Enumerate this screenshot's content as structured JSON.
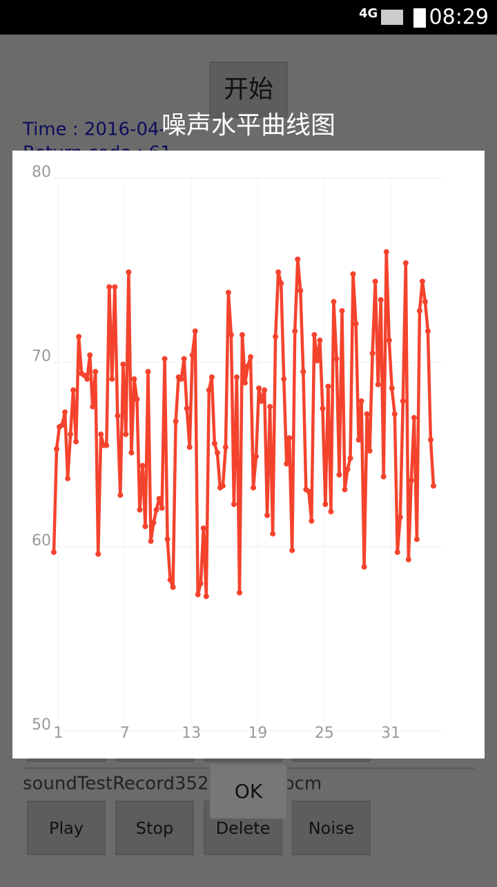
{
  "status_bar": {
    "network": "4G",
    "time": "08:29"
  },
  "background": {
    "start_button": "开始",
    "time_text": "Time : 2016-04-",
    "return_code": "Return code : 61",
    "file_name": "soundTestRecord352892810.pcm",
    "buttons": [
      "Play",
      "Stop",
      "Delete",
      "Noise"
    ]
  },
  "dialog": {
    "title": "噪声水平曲线图",
    "ok_button": "OK"
  },
  "chart_data": {
    "type": "line",
    "color": "#f4432d",
    "grid": true,
    "xlim": [
      0.6,
      35.6
    ],
    "xticks": [
      1,
      7,
      13,
      19,
      25,
      31
    ],
    "ylim": [
      50,
      80
    ],
    "yticks": [
      50,
      60,
      70,
      80
    ],
    "x": [
      0.6,
      0.85,
      1.1,
      1.35,
      1.6,
      1.85,
      2.1,
      2.35,
      2.6,
      2.85,
      3.1,
      3.35,
      3.6,
      3.85,
      4.1,
      4.35,
      4.6,
      4.85,
      5.1,
      5.35,
      5.6,
      5.85,
      6.1,
      6.35,
      6.6,
      6.85,
      7.1,
      7.35,
      7.6,
      7.85,
      8.1,
      8.35,
      8.6,
      8.85,
      9.1,
      9.35,
      9.6,
      9.85,
      10.1,
      10.35,
      10.6,
      10.85,
      11.1,
      11.35,
      11.6,
      11.85,
      12.1,
      12.35,
      12.6,
      12.85,
      13.1,
      13.35,
      13.6,
      13.85,
      14.1,
      14.35,
      14.6,
      14.85,
      15.1,
      15.35,
      15.6,
      15.85,
      16.1,
      16.35,
      16.6,
      16.85,
      17.1,
      17.35,
      17.6,
      17.85,
      18.1,
      18.35,
      18.6,
      18.85,
      19.1,
      19.35,
      19.6,
      19.85,
      20.1,
      20.35,
      20.6,
      20.85,
      21.1,
      21.35,
      21.6,
      21.85,
      22.1,
      22.35,
      22.6,
      22.85,
      23.1,
      23.35,
      23.6,
      23.85,
      24.1,
      24.35,
      24.6,
      24.85,
      25.1,
      25.35,
      25.6,
      25.85,
      26.1,
      26.35,
      26.6,
      26.85,
      27.1,
      27.35,
      27.6,
      27.85,
      28.1,
      28.35,
      28.6,
      28.85,
      29.1,
      29.35,
      29.6,
      29.85,
      30.1,
      30.35,
      30.6,
      30.85,
      31.1,
      31.35,
      31.6,
      31.85,
      32.1,
      32.35,
      32.6,
      32.85,
      33.1,
      33.35,
      33.6,
      33.85,
      34.1,
      34.35,
      34.6,
      34.85
    ],
    "values": [
      59.7,
      65.3,
      66.5,
      66.6,
      67.3,
      63.7,
      66.1,
      68.5,
      65.7,
      71.4,
      69.4,
      69.3,
      69.1,
      70.4,
      67.6,
      69.5,
      59.6,
      66.1,
      65.5,
      65.5,
      74.1,
      69.1,
      74.1,
      67.1,
      62.8,
      69.9,
      66.1,
      74.9,
      65.1,
      69.1,
      68.0,
      62.0,
      64.4,
      61.1,
      69.5,
      60.3,
      61.3,
      62.0,
      62.6,
      62.1,
      70.2,
      60.4,
      58.2,
      57.8,
      66.8,
      69.2,
      69.1,
      70.2,
      67.5,
      65.4,
      70.4,
      71.7,
      57.4,
      58.0,
      61.0,
      57.3,
      68.5,
      69.2,
      65.6,
      65.1,
      63.2,
      63.3,
      65.4,
      73.8,
      71.5,
      62.3,
      69.2,
      57.5,
      71.5,
      68.9,
      69.8,
      70.3,
      63.2,
      64.9,
      68.6,
      67.9,
      68.5,
      61.7,
      67.6,
      60.7,
      71.4,
      74.9,
      74.3,
      69.1,
      64.5,
      65.9,
      59.8,
      71.7,
      75.6,
      73.9,
      69.5,
      63.1,
      63.0,
      61.4,
      71.5,
      70.1,
      71.2,
      67.5,
      62.3,
      68.7,
      61.9,
      73.3,
      70.2,
      63.9,
      72.8,
      63.1,
      64.2,
      64.8,
      74.8,
      72.1,
      65.8,
      67.9,
      58.9,
      67.2,
      65.2,
      70.5,
      74.4,
      68.8,
      73.4,
      63.8,
      76.0,
      71.2,
      68.6,
      67.2,
      59.7,
      61.6,
      67.9,
      75.4,
      59.3,
      63.6,
      67.0,
      60.4,
      72.8,
      74.4,
      73.3,
      71.7,
      65.8,
      63.3
    ]
  }
}
